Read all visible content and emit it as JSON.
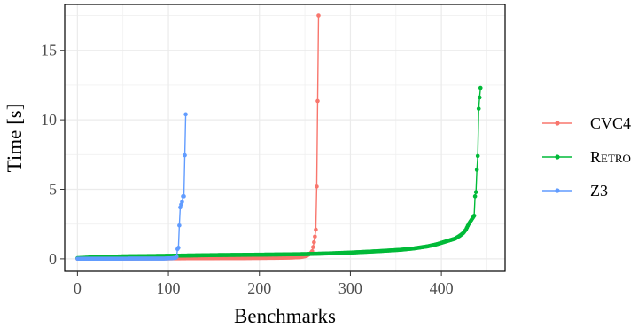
{
  "chart_data": {
    "type": "line",
    "xlabel": "Benchmarks",
    "ylabel": "Time [s]",
    "xlim": [
      -14,
      470
    ],
    "ylim": [
      -0.9,
      18.3
    ],
    "x_ticks": [
      0,
      100,
      200,
      300,
      400
    ],
    "x_tick_labels": [
      "0",
      "100",
      "200",
      "300",
      "400"
    ],
    "y_ticks": [
      0,
      5,
      10,
      15
    ],
    "y_tick_labels": [
      "0",
      "5",
      "10",
      "15"
    ],
    "grid": true,
    "legend_position": "right",
    "series": [
      {
        "name": "CVC4",
        "color": "#F8766D",
        "points": [
          [
            0,
            0.01
          ],
          [
            10,
            0.01
          ],
          [
            20,
            0.02
          ],
          [
            40,
            0.02
          ],
          [
            60,
            0.02
          ],
          [
            80,
            0.03
          ],
          [
            100,
            0.03
          ],
          [
            120,
            0.04
          ],
          [
            140,
            0.04
          ],
          [
            160,
            0.05
          ],
          [
            180,
            0.05
          ],
          [
            200,
            0.06
          ],
          [
            220,
            0.07
          ],
          [
            235,
            0.09
          ],
          [
            245,
            0.12
          ],
          [
            250,
            0.18
          ],
          [
            252,
            0.22
          ],
          [
            254,
            0.3
          ],
          [
            256,
            0.4
          ],
          [
            258,
            0.55
          ],
          [
            259,
            0.85
          ],
          [
            260,
            1.2
          ],
          [
            261,
            1.6
          ],
          [
            262,
            2.1
          ],
          [
            263,
            5.2
          ],
          [
            265,
            17.5
          ]
        ]
      },
      {
        "name": "Retro",
        "color": "#00BA38",
        "points": [
          [
            0,
            0.05
          ],
          [
            20,
            0.12
          ],
          [
            50,
            0.18
          ],
          [
            100,
            0.22
          ],
          [
            150,
            0.27
          ],
          [
            200,
            0.3
          ],
          [
            250,
            0.34
          ],
          [
            280,
            0.4
          ],
          [
            300,
            0.45
          ],
          [
            330,
            0.55
          ],
          [
            355,
            0.65
          ],
          [
            370,
            0.75
          ],
          [
            385,
            0.9
          ],
          [
            395,
            1.05
          ],
          [
            405,
            1.25
          ],
          [
            415,
            1.45
          ],
          [
            420,
            1.65
          ],
          [
            424,
            1.85
          ],
          [
            427,
            2.1
          ],
          [
            430,
            2.5
          ],
          [
            432,
            2.7
          ],
          [
            434,
            2.9
          ],
          [
            436,
            3.1
          ],
          [
            437,
            4.5
          ],
          [
            438,
            4.8
          ],
          [
            439,
            6.4
          ],
          [
            440,
            7.4
          ],
          [
            441,
            10.8
          ],
          [
            442,
            11.6
          ],
          [
            443,
            12.3
          ]
        ]
      },
      {
        "name": "Z3",
        "color": "#619CFF",
        "points": [
          [
            0,
            0.01
          ],
          [
            20,
            0.01
          ],
          [
            40,
            0.01
          ],
          [
            60,
            0.02
          ],
          [
            80,
            0.02
          ],
          [
            95,
            0.02
          ],
          [
            105,
            0.05
          ],
          [
            108,
            0.08
          ],
          [
            109,
            0.15
          ],
          [
            110,
            0.7
          ],
          [
            111,
            0.8
          ],
          [
            112,
            2.4
          ],
          [
            113,
            3.7
          ],
          [
            114,
            3.9
          ],
          [
            115,
            4.1
          ],
          [
            116,
            4.5
          ],
          [
            117,
            4.5
          ],
          [
            119,
            10.4
          ]
        ]
      }
    ]
  }
}
